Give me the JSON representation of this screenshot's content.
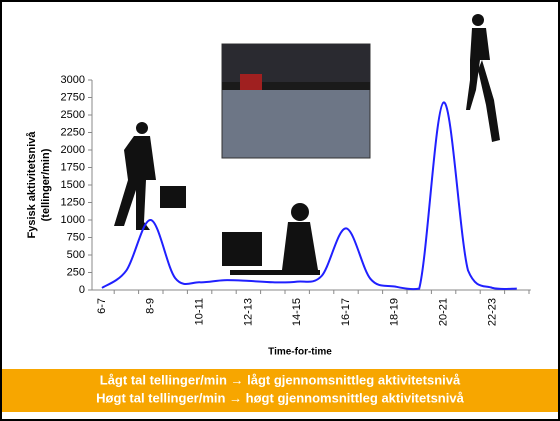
{
  "chart_data": {
    "type": "line",
    "y_label": [
      "Fysisk aktivitetsnivå",
      "(tellinger/min)"
    ],
    "x_label": "Time-for-time",
    "categories": [
      "6-7",
      null,
      "8-9",
      null,
      "10-11",
      null,
      "12-13",
      null,
      "14-15",
      null,
      "16-17",
      null,
      "18-19",
      null,
      "20-21",
      null,
      "22-23",
      null
    ],
    "series": [
      {
        "color": "#2020ff",
        "values": [
          30,
          280,
          1000,
          170,
          110,
          140,
          130,
          110,
          120,
          200,
          880,
          160,
          50,
          20,
          2680,
          280,
          30,
          20
        ]
      }
    ],
    "ylim": [
      0,
      3000
    ],
    "yticks": [
      0,
      250,
      500,
      750,
      1000,
      1250,
      1500,
      1750,
      2000,
      2250,
      2500,
      2750,
      3000
    ],
    "notes": [
      "Lågt tal tellinger/min → lågt gjennomsnittleg aktivitetsnivå",
      "Høgt tal tellinger/min → høgt gjennomsnittleg aktivitetsnivå"
    ]
  }
}
